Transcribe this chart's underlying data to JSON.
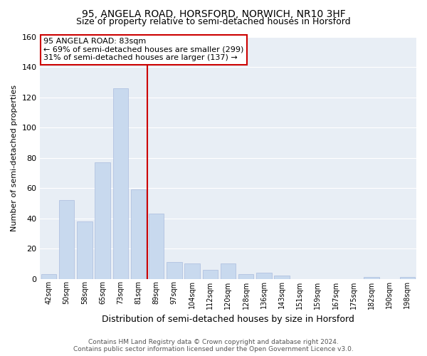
{
  "title": "95, ANGELA ROAD, HORSFORD, NORWICH, NR10 3HF",
  "subtitle": "Size of property relative to semi-detached houses in Horsford",
  "xlabel": "Distribution of semi-detached houses by size in Horsford",
  "ylabel": "Number of semi-detached properties",
  "bar_labels": [
    "42sqm",
    "50sqm",
    "58sqm",
    "65sqm",
    "73sqm",
    "81sqm",
    "89sqm",
    "97sqm",
    "104sqm",
    "112sqm",
    "120sqm",
    "128sqm",
    "136sqm",
    "143sqm",
    "151sqm",
    "159sqm",
    "167sqm",
    "175sqm",
    "182sqm",
    "190sqm",
    "198sqm"
  ],
  "bar_values": [
    3,
    52,
    38,
    77,
    126,
    59,
    43,
    11,
    10,
    6,
    10,
    3,
    4,
    2,
    0,
    0,
    0,
    0,
    1,
    0,
    1
  ],
  "bar_color": "#c8d9ee",
  "vline_index": 5,
  "vline_color": "#cc0000",
  "annotation_title": "95 ANGELA ROAD: 83sqm",
  "annotation_line1": "← 69% of semi-detached houses are smaller (299)",
  "annotation_line2": "31% of semi-detached houses are larger (137) →",
  "annotation_box_facecolor": "#ffffff",
  "annotation_box_edgecolor": "#cc0000",
  "ylim": [
    0,
    160
  ],
  "yticks": [
    0,
    20,
    40,
    60,
    80,
    100,
    120,
    140,
    160
  ],
  "background_color": "#ffffff",
  "plot_bg_color": "#e8eef5",
  "grid_color": "#ffffff",
  "title_fontsize": 10,
  "subtitle_fontsize": 9,
  "footer_line1": "Contains HM Land Registry data © Crown copyright and database right 2024.",
  "footer_line2": "Contains public sector information licensed under the Open Government Licence v3.0."
}
